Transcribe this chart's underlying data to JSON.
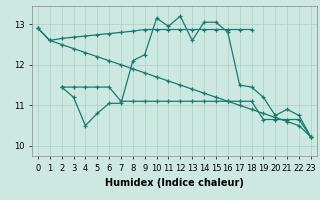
{
  "xlabel": "Humidex (Indice chaleur)",
  "background_color": "#cce8e0",
  "line_color": "#1a7a6e",
  "grid_color": "#aad0c8",
  "ylim": [
    9.75,
    13.45
  ],
  "xlim": [
    -0.5,
    23.5
  ],
  "yticks": [
    10,
    11,
    12,
    13
  ],
  "xticks": [
    0,
    1,
    2,
    3,
    4,
    5,
    6,
    7,
    8,
    9,
    10,
    11,
    12,
    13,
    14,
    15,
    16,
    17,
    18,
    19,
    20,
    21,
    22,
    23
  ],
  "line1_x": [
    0,
    1,
    2,
    3,
    4,
    5,
    6,
    7,
    8,
    9,
    10,
    11,
    12,
    13,
    14,
    15,
    16,
    17,
    18
  ],
  "line1_y": [
    12.9,
    12.6,
    12.65,
    12.68,
    12.71,
    12.74,
    12.77,
    12.8,
    12.83,
    12.87,
    12.87,
    12.87,
    12.87,
    12.87,
    12.87,
    12.87,
    12.87,
    12.87,
    12.87
  ],
  "line2_x": [
    2,
    3,
    4,
    5,
    6,
    7,
    8,
    9,
    10,
    11,
    12,
    13,
    14,
    15,
    16,
    17,
    18,
    19,
    20,
    21,
    22,
    23
  ],
  "line2_y": [
    11.45,
    11.45,
    11.45,
    11.45,
    11.45,
    11.1,
    11.1,
    11.1,
    11.1,
    11.1,
    11.1,
    11.1,
    11.1,
    11.1,
    11.1,
    11.1,
    11.1,
    10.65,
    10.65,
    10.65,
    10.65,
    10.22
  ],
  "line3_x": [
    2,
    3,
    4,
    5,
    6,
    7,
    8,
    9,
    10,
    11,
    12,
    13,
    14,
    15,
    16,
    17,
    18,
    19,
    20,
    21,
    22,
    23
  ],
  "line3_y": [
    11.45,
    11.2,
    10.5,
    10.8,
    11.05,
    11.05,
    12.1,
    12.25,
    13.15,
    12.95,
    13.2,
    12.6,
    13.05,
    13.05,
    12.8,
    11.5,
    11.45,
    11.2,
    10.75,
    10.9,
    10.75,
    10.22
  ],
  "line4_x": [
    0,
    1,
    2,
    3,
    4,
    5,
    6,
    7,
    8,
    9,
    10,
    11,
    12,
    13,
    14,
    15,
    16,
    17,
    18,
    19,
    20,
    21,
    22,
    23
  ],
  "line4_y": [
    12.9,
    12.6,
    12.5,
    12.4,
    12.3,
    12.2,
    12.1,
    12.0,
    11.9,
    11.8,
    11.7,
    11.6,
    11.5,
    11.4,
    11.3,
    11.2,
    11.1,
    11.0,
    10.9,
    10.8,
    10.7,
    10.6,
    10.5,
    10.22
  ],
  "xlabel_fontsize": 7,
  "tick_fontsize": 6,
  "lw": 0.9,
  "ms": 3.0
}
